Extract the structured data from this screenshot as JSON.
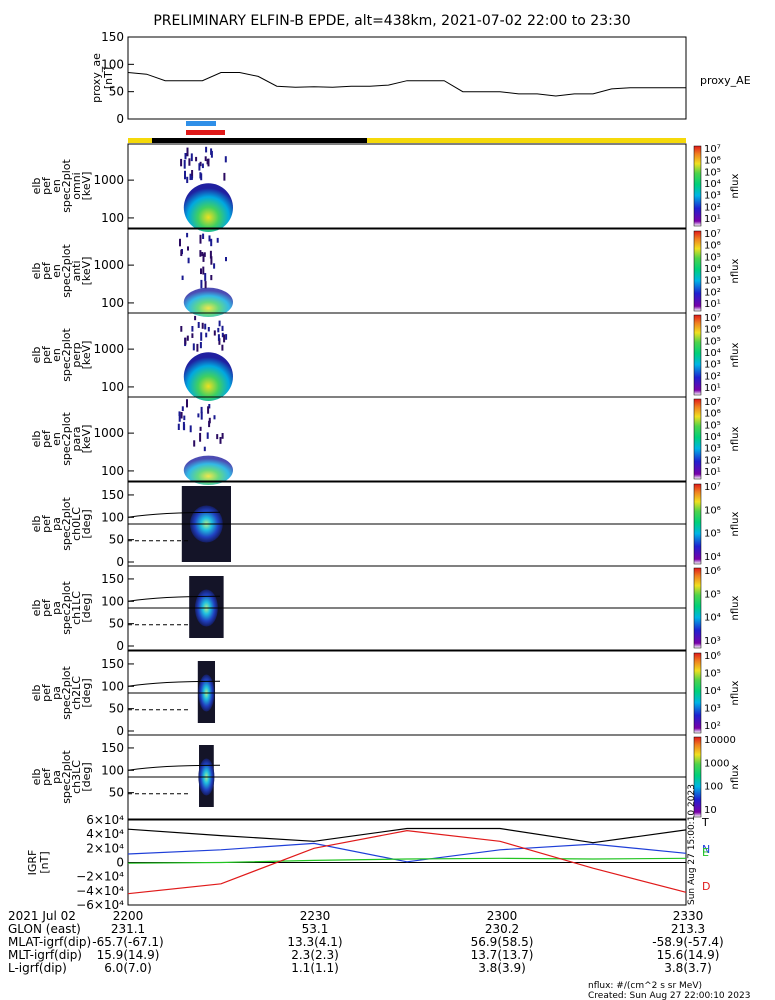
{
  "title": "PRELIMINARY ELFIN-B EPDE, alt=438km, 2021-07-02 22:00 to 23:30",
  "colors": {
    "ae": "#000000",
    "bar_blue": "#2f8fe8",
    "bar_red": "#e01a1a",
    "bar_yellow": "#f5d90a",
    "bar_black": "#000000",
    "grf_T": "#000000",
    "grf_N": "#1f3fd8",
    "grf_E": "#22c422",
    "grf_D": "#e01a1a"
  },
  "ae_panel": {
    "ylabel_lines": [
      "proxy_ae",
      "[nT]"
    ],
    "yticks": [
      "150",
      "100",
      "50",
      "0"
    ],
    "legend": "proxy_AE"
  },
  "spec_panels": [
    {
      "ylabel_lines": [
        "elb",
        "pef",
        "en",
        "spec2plot",
        "omni",
        "[keV]"
      ],
      "yticks": [
        "1000",
        "100"
      ],
      "cb_label": "nflux"
    },
    {
      "ylabel_lines": [
        "elb",
        "pef",
        "en",
        "spec2plot",
        "anti",
        "[keV]"
      ],
      "yticks": [
        "1000",
        "100"
      ],
      "cb_label": "nflux"
    },
    {
      "ylabel_lines": [
        "elb",
        "pef",
        "en",
        "spec2plot",
        "perp",
        "[keV]"
      ],
      "yticks": [
        "1000",
        "100"
      ],
      "cb_label": "nflux"
    },
    {
      "ylabel_lines": [
        "elb",
        "pef",
        "en",
        "spec2plot",
        "para",
        "[keV]"
      ],
      "yticks": [
        "1000",
        "100"
      ],
      "cb_label": "nflux"
    },
    {
      "ylabel_lines": [
        "elb",
        "pef",
        "pa",
        "spec2plot",
        "ch0LC",
        "[deg]"
      ],
      "yticks": [
        "150",
        "100",
        "50",
        "0"
      ],
      "cb_label": "nflux"
    },
    {
      "ylabel_lines": [
        "elb",
        "pef",
        "pa",
        "spec2plot",
        "ch1LC",
        "[deg]"
      ],
      "yticks": [
        "150",
        "100",
        "50",
        "0"
      ],
      "cb_label": "nflux"
    },
    {
      "ylabel_lines": [
        "elb",
        "pef",
        "pa",
        "spec2plot",
        "ch2LC",
        "[deg]"
      ],
      "yticks": [
        "150",
        "100",
        "50",
        "0"
      ],
      "cb_label": "nflux"
    },
    {
      "ylabel_lines": [
        "elb",
        "pef",
        "pa",
        "spec2plot",
        "ch3LC",
        "[deg]"
      ],
      "yticks": [
        "150",
        "100",
        "50"
      ],
      "cb_label": "nflux"
    }
  ],
  "colorbars": [
    [
      "10⁷",
      "10⁶",
      "10⁵",
      "10⁴",
      "10³",
      "10²",
      "10¹"
    ],
    [
      "10⁷",
      "10⁶",
      "10⁵",
      "10⁴",
      "10³",
      "10²",
      "10¹"
    ],
    [
      "10⁷",
      "10⁶",
      "10⁵",
      "10⁴",
      "10³",
      "10²",
      "10¹"
    ],
    [
      "10⁷",
      "10⁶",
      "10⁵",
      "10⁴",
      "10³",
      "10²",
      "10¹"
    ],
    [
      "10⁷",
      "10⁶",
      "10⁵",
      "10⁴"
    ],
    [
      "10⁶",
      "10⁵",
      "10⁴",
      "10³"
    ],
    [
      "10⁶",
      "10⁵",
      "10⁴",
      "10³",
      "10²"
    ],
    [
      "10000",
      "1000",
      "100",
      "10"
    ]
  ],
  "grf_panel": {
    "ylabel_lines": [
      "IGRF",
      "[nT]"
    ],
    "yticks": [
      "6×10⁴",
      "4×10⁴",
      "2×10⁴",
      "0",
      "−2×10⁴",
      "−4×10⁴",
      "−6×10⁴"
    ],
    "legend": [
      "T",
      "N",
      "E",
      "D"
    ],
    "side_note": "Sun Aug 27 15:00:10 2023"
  },
  "footer": {
    "row_labels": [
      "2021 Jul 02",
      "GLON (east)",
      "MLAT-igrf(dip)",
      "MLT-igrf(dip)",
      "L-igrf(dip)"
    ],
    "columns": [
      {
        "values": [
          "2200",
          "231.1",
          "-65.7(-67.1)",
          "15.9(14.9)",
          "6.0(7.0)"
        ]
      },
      {
        "values": [
          "2230",
          "53.1",
          "13.3(4.1)",
          "2.3(2.3)",
          "1.1(1.1)"
        ]
      },
      {
        "values": [
          "2300",
          "230.2",
          "56.9(58.5)",
          "13.7(13.7)",
          "3.8(3.9)"
        ]
      },
      {
        "values": [
          "2330",
          "213.3",
          "-58.9(-57.4)",
          "15.6(14.9)",
          "3.8(3.7)"
        ]
      }
    ],
    "note1": "nflux: #/(cm^2 s sr MeV)",
    "note2": "Created: Sun Aug 27 22:00:10 2023"
  },
  "chart_data": {
    "type": "line",
    "xlabel": "",
    "x_ticks": [
      "2200",
      "2230",
      "2300",
      "2330"
    ],
    "xlim": [
      "22:00",
      "23:30"
    ],
    "series": [
      {
        "name": "proxy_AE",
        "x": [
          "22:00",
          "22:03",
          "22:06",
          "22:09",
          "22:12",
          "22:15",
          "22:18",
          "22:21",
          "22:24",
          "22:27",
          "22:30",
          "22:33",
          "22:36",
          "22:39",
          "22:42",
          "22:45",
          "22:48",
          "22:51",
          "22:54",
          "22:57",
          "23:00",
          "23:03",
          "23:06",
          "23:09",
          "23:12",
          "23:15",
          "23:18",
          "23:21",
          "23:24",
          "23:27",
          "23:30"
        ],
        "values": [
          85,
          82,
          70,
          70,
          70,
          85,
          85,
          78,
          60,
          58,
          59,
          58,
          60,
          60,
          62,
          70,
          70,
          70,
          50,
          50,
          50,
          46,
          46,
          42,
          46,
          46,
          55,
          57,
          57,
          57,
          57
        ]
      }
    ],
    "ylim": [
      0,
      150
    ],
    "nflux_spectrograms": {
      "active_interval": [
        "22:09",
        "22:15"
      ],
      "peak_nflux": 1000000.0,
      "energy_range_keV": [
        60,
        7000
      ]
    },
    "grf": {
      "ylim": [
        -60000,
        60000
      ],
      "series": [
        {
          "name": "T",
          "x": [
            "22:00",
            "22:15",
            "22:30",
            "22:45",
            "23:00",
            "23:15",
            "23:30"
          ],
          "values": [
            47000,
            38000,
            30000,
            48000,
            48000,
            28000,
            46000
          ]
        },
        {
          "name": "N",
          "x": [
            "22:00",
            "22:15",
            "22:30",
            "22:45",
            "23:00",
            "23:15",
            "23:30"
          ],
          "values": [
            12000,
            18000,
            27000,
            1000,
            18000,
            26000,
            13000
          ]
        },
        {
          "name": "E",
          "x": [
            "22:00",
            "22:15",
            "22:30",
            "22:45",
            "23:00",
            "23:15",
            "23:30"
          ],
          "values": [
            -1000,
            0,
            3000,
            5000,
            6000,
            5000,
            6000
          ]
        },
        {
          "name": "D",
          "x": [
            "22:00",
            "22:15",
            "22:30",
            "22:45",
            "23:00",
            "23:15",
            "23:30"
          ],
          "values": [
            -44000,
            -30000,
            20000,
            45000,
            30000,
            -8000,
            -42000
          ]
        }
      ]
    }
  }
}
